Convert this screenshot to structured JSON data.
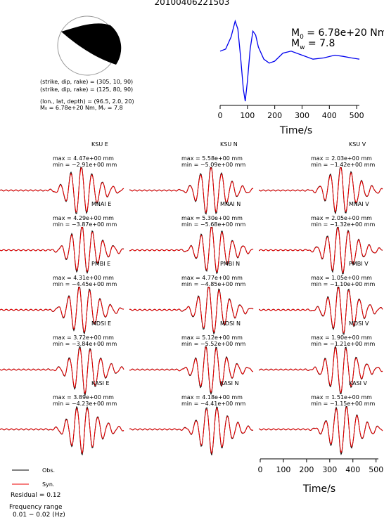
{
  "event_id": "20100406221503",
  "focal": {
    "line1": "(strike, dip, rake) = (305, 10, 90)",
    "line2": "(strike, dip, rake) = (125, 80, 90)",
    "line3": "(lon., lat, depth) = (96.5, 2.0, 20)",
    "line4": "M₀ = 6.78e+20 Nm, Mᵥ = 7.8"
  },
  "stf": {
    "m0_label": "M",
    "m0_sub": "0",
    "m0_value": " = 6.78e+20 Nm",
    "mw_label": "M",
    "mw_sub": "w",
    "mw_value": " = 7.8",
    "xlabel": "Time/s",
    "xticks": [
      "0",
      "100",
      "200",
      "300",
      "400",
      "500"
    ],
    "color": "#0000ee"
  },
  "bottom_axis": {
    "xlabel": "Time/s",
    "xticks": [
      "0",
      "100",
      "200",
      "300",
      "400",
      "500"
    ]
  },
  "legend": {
    "obs_label": "Obs.",
    "syn_label": "Syn.",
    "obs_color": "#000000",
    "syn_color": "#ee0000"
  },
  "residual": "Residual = 0.12",
  "freq_label": "Frequency range",
  "freq_value": "0.01 − 0.02 (Hz)",
  "panels": [
    {
      "label": "KSU E",
      "max": "max = 4.47e+00 mm",
      "min": "min = −2.91e+00 mm"
    },
    {
      "label": "KSU N",
      "max": "max = 5.58e+00 mm",
      "min": "min = −5.09e+00 mm"
    },
    {
      "label": "KSU V",
      "max": "max = 2.03e+00 mm",
      "min": "min = −1.42e+00 mm"
    },
    {
      "label": "MNAI E",
      "max": "max = 4.29e+00 mm",
      "min": "min = −3.87e+00 mm"
    },
    {
      "label": "MNAI N",
      "max": "max = 5.30e+00 mm",
      "min": "min = −5.68e+00 mm"
    },
    {
      "label": "MNAI V",
      "max": "max = 2.05e+00 mm",
      "min": "min = −1.32e+00 mm"
    },
    {
      "label": "PMBI E",
      "max": "max = 4.31e+00 mm",
      "min": "min = −4.45e+00 mm"
    },
    {
      "label": "PMBI N",
      "max": "max = 4.77e+00 mm",
      "min": "min = −4.85e+00 mm"
    },
    {
      "label": "PMBI V",
      "max": "max = 1.05e+00 mm",
      "min": "min = −1.10e+00 mm"
    },
    {
      "label": "MDSI E",
      "max": "max = 3.72e+00 mm",
      "min": "min = −3.84e+00 mm"
    },
    {
      "label": "MDSI N",
      "max": "max = 5.12e+00 mm",
      "min": "min = −5.52e+00 mm"
    },
    {
      "label": "MDSI V",
      "max": "max = 1.90e+00 mm",
      "min": "min = −1.21e+00 mm"
    },
    {
      "label": "KASI E",
      "max": "max = 3.89e+00 mm",
      "min": "min = −4.23e+00 mm"
    },
    {
      "label": "KASI N",
      "max": "max = 4.18e+00 mm",
      "min": "min = −4.41e+00 mm"
    },
    {
      "label": "KASI V",
      "max": "max = 1.51e+00 mm",
      "min": "min = −1.15e+00 mm"
    }
  ],
  "chart_data": [
    {
      "type": "line",
      "xlabel": "Time/s",
      "xlim": [
        0,
        510
      ],
      "xticks": [
        0,
        100,
        200,
        300,
        400,
        500
      ],
      "series": [
        {
          "x": [
            0,
            20,
            40,
            55,
            65,
            75,
            85,
            92,
            100,
            110,
            120,
            130,
            140,
            160,
            180,
            200,
            230,
            260,
            300,
            340,
            380,
            420,
            450,
            480,
            510
          ],
          "y": [
            0.25,
            0.3,
            0.6,
            1.0,
            0.8,
            0.1,
            -0.7,
            -1.0,
            -0.5,
            0.3,
            0.75,
            0.65,
            0.35,
            0.05,
            -0.05,
            0.0,
            0.2,
            0.25,
            0.15,
            0.05,
            0.08,
            0.15,
            0.12,
            0.08,
            0.05
          ]
        }
      ]
    },
    {
      "type": "line",
      "xlabel": "Time/s",
      "xlim": [
        0,
        510
      ],
      "xticks": [
        0,
        100,
        200,
        300,
        400,
        500
      ],
      "series": [
        {
          "name": "Obs."
        },
        {
          "name": "Syn."
        }
      ]
    }
  ]
}
